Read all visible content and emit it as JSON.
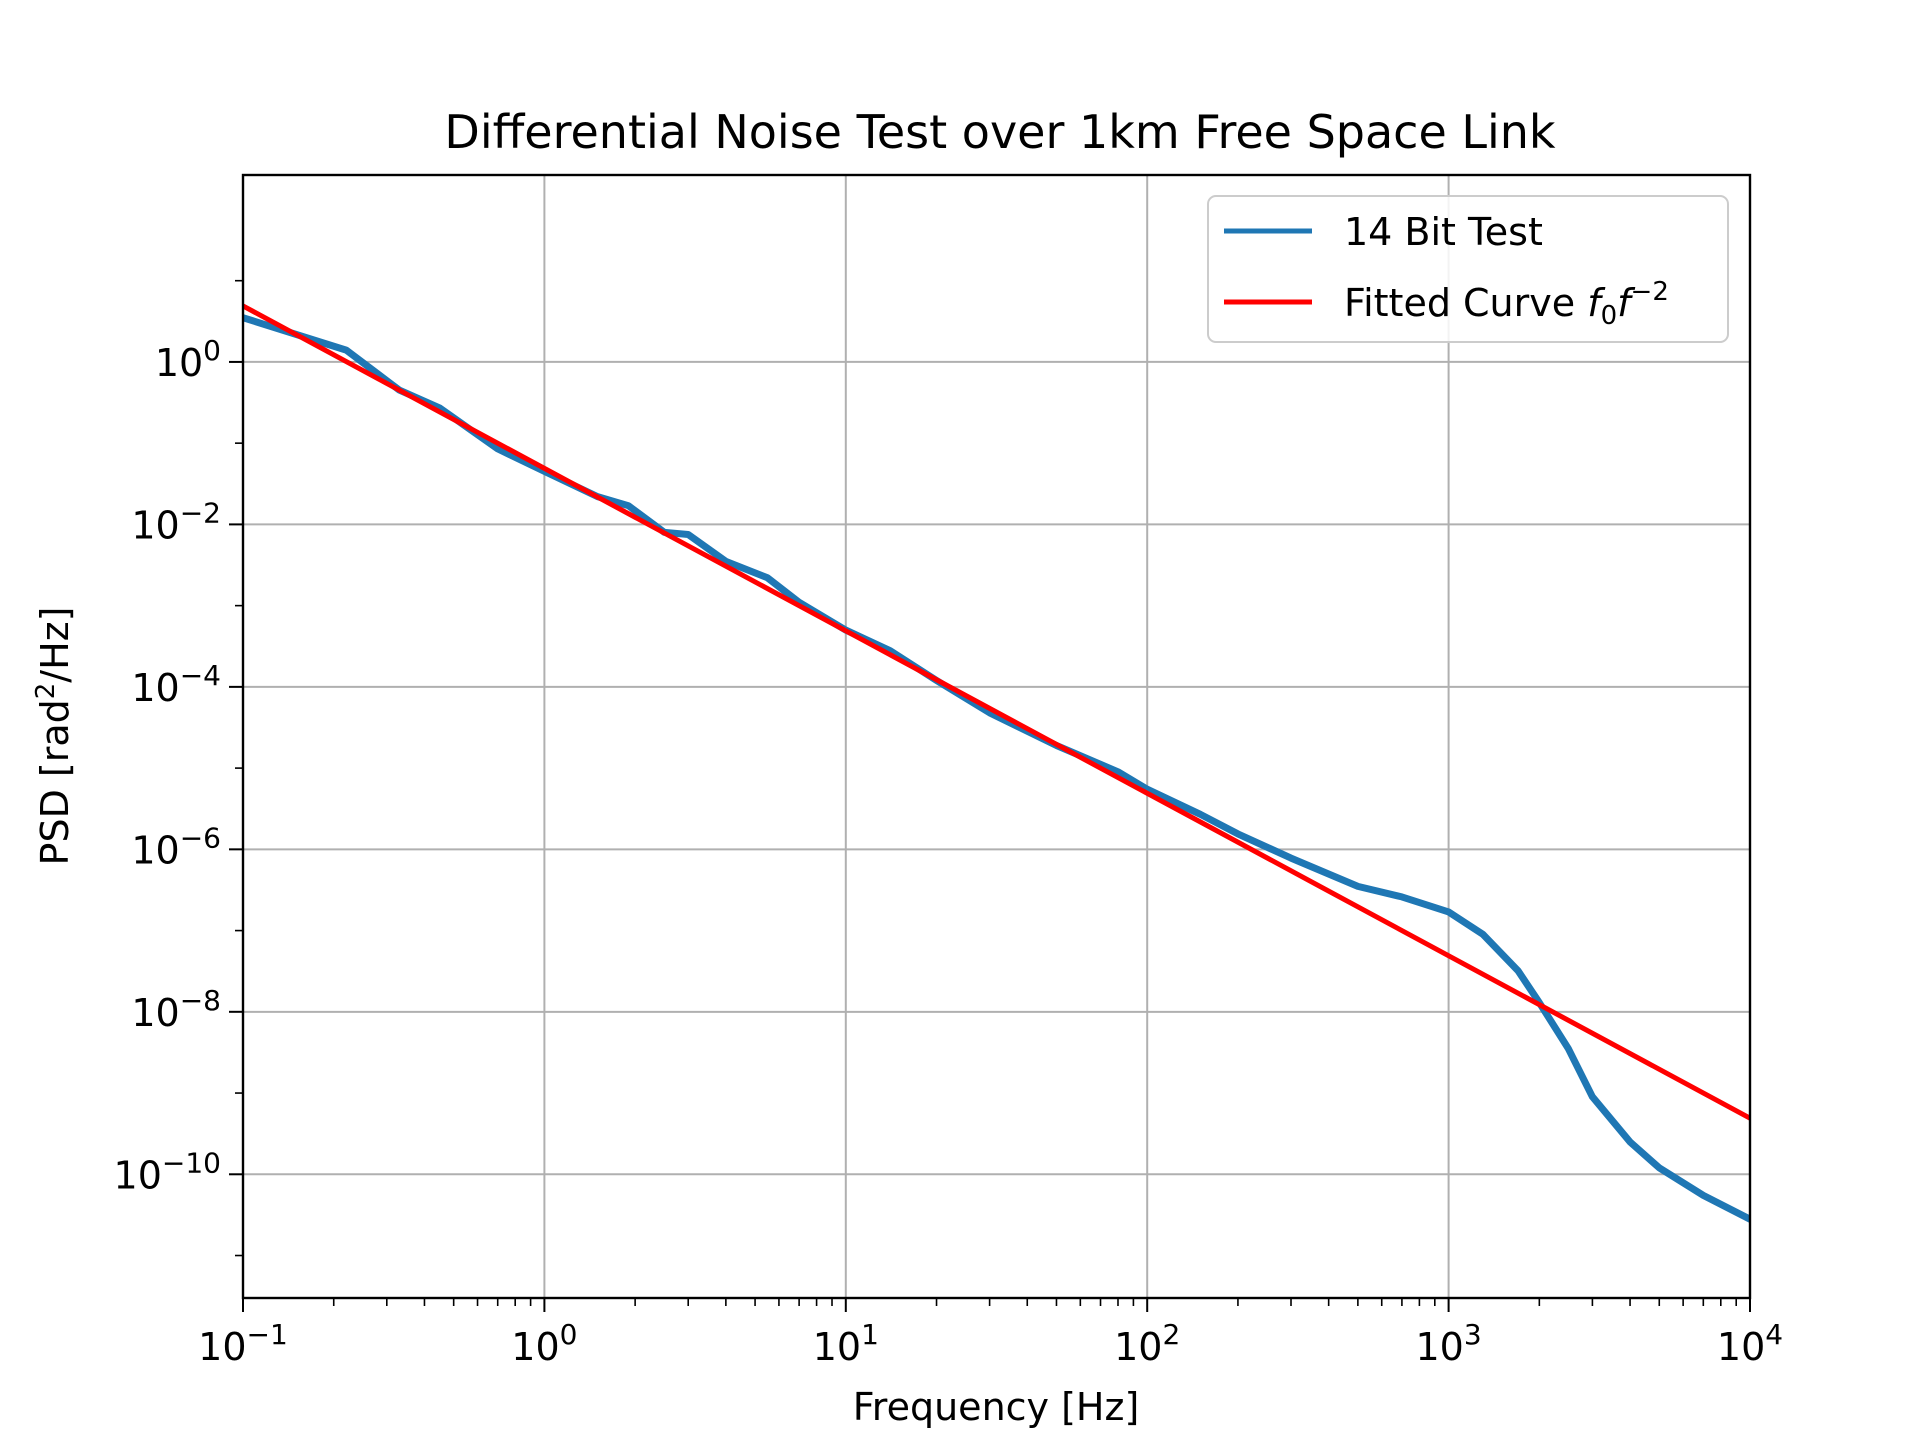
{
  "chart_data": {
    "type": "line",
    "title": "Differential Noise Test over 1km Free Space Link",
    "xlabel": "Frequency [Hz]",
    "ylabel": "PSD [rad²/Hz]",
    "xscale": "log",
    "yscale": "log",
    "xlim": [
      0.1,
      10000
    ],
    "ylim": [
      3e-12,
      200
    ],
    "x_ticks": [
      {
        "base": "10",
        "exp": "−1"
      },
      {
        "base": "10",
        "exp": "0"
      },
      {
        "base": "10",
        "exp": "1"
      },
      {
        "base": "10",
        "exp": "2"
      },
      {
        "base": "10",
        "exp": "3"
      },
      {
        "base": "10",
        "exp": "4"
      }
    ],
    "y_ticks": [
      {
        "base": "10",
        "exp": "0"
      },
      {
        "base": "10",
        "exp": "−2"
      },
      {
        "base": "10",
        "exp": "−4"
      },
      {
        "base": "10",
        "exp": "−6"
      },
      {
        "base": "10",
        "exp": "−8"
      },
      {
        "base": "10",
        "exp": "−10"
      }
    ],
    "grid": true,
    "legend_position": "top-right",
    "series": [
      {
        "name": "14 Bit Test",
        "color": "#1f77b4",
        "points": [
          [
            0.1,
            3.5
          ],
          [
            0.22,
            1.4
          ],
          [
            0.33,
            0.45
          ],
          [
            0.45,
            0.27
          ],
          [
            0.7,
            0.085
          ],
          [
            1.0,
            0.045
          ],
          [
            1.5,
            0.022
          ],
          [
            1.9,
            0.017
          ],
          [
            2.5,
            0.008
          ],
          [
            3.0,
            0.0075
          ],
          [
            4.0,
            0.0035
          ],
          [
            5.5,
            0.0022
          ],
          [
            7.0,
            0.0011
          ],
          [
            10.0,
            0.0005
          ],
          [
            14.0,
            0.00028
          ],
          [
            20.0,
            0.00012
          ],
          [
            30.0,
            4.8e-05
          ],
          [
            50.0,
            1.9e-05
          ],
          [
            80.0,
            9e-06
          ],
          [
            100.0,
            5.5e-06
          ],
          [
            150.0,
            2.7e-06
          ],
          [
            200.0,
            1.55e-06
          ],
          [
            300.0,
            7.8e-07
          ],
          [
            500.0,
            3.5e-07
          ],
          [
            700.0,
            2.6e-07
          ],
          [
            1000.0,
            1.7e-07
          ],
          [
            1300.0,
            9e-08
          ],
          [
            1700.0,
            3.2e-08
          ],
          [
            2000.0,
            1.3e-08
          ],
          [
            2500.0,
            3.5e-09
          ],
          [
            3000.0,
            9e-10
          ],
          [
            4000.0,
            2.5e-10
          ],
          [
            5000.0,
            1.2e-10
          ],
          [
            7000.0,
            5.5e-11
          ],
          [
            10000.0,
            2.8e-11
          ]
        ]
      },
      {
        "name": "Fitted Curve f₀f⁻²",
        "color": "#ff0000",
        "points": [
          [
            0.1,
            4.9
          ],
          [
            10000.0,
            4.9e-10
          ]
        ]
      }
    ],
    "legend": [
      {
        "label": "14 Bit Test"
      },
      {
        "label_prefix": "Fitted Curve ",
        "label_f": "f",
        "label_sub": "0",
        "label_f2": "f",
        "label_sup": "−2"
      }
    ]
  }
}
